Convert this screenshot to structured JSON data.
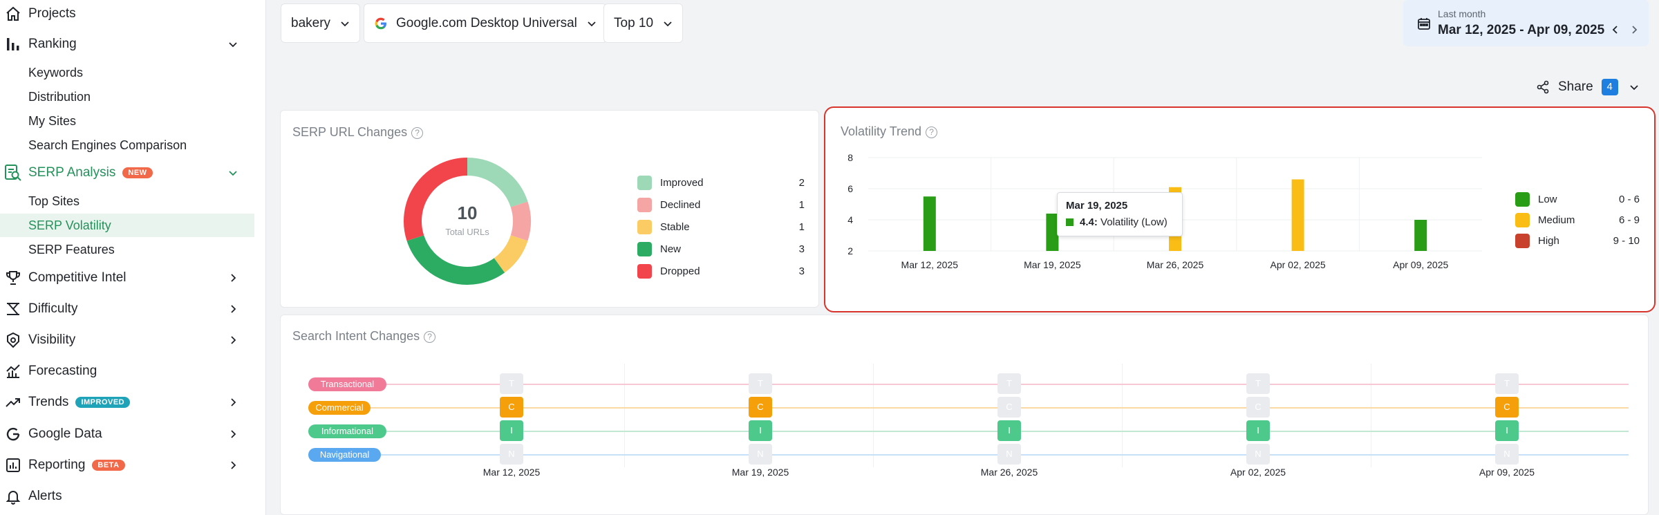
{
  "sidebar": {
    "projects": "Projects",
    "ranking": "Ranking",
    "ranking_sub": [
      "Keywords",
      "Distribution",
      "My Sites",
      "Search Engines Comparison"
    ],
    "serp_analysis": "SERP Analysis",
    "serp_badge": "NEW",
    "serp_sub": [
      "Top Sites",
      "SERP Volatility",
      "SERP Features"
    ],
    "competitive": "Competitive Intel",
    "difficulty": "Difficulty",
    "visibility": "Visibility",
    "forecasting": "Forecasting",
    "trends": "Trends",
    "trends_badge": "IMPROVED",
    "google_data": "Google Data",
    "reporting": "Reporting",
    "reporting_badge": "BETA",
    "alerts": "Alerts"
  },
  "topbar": {
    "keyword": "bakery",
    "engine": "Google.com Desktop Universal",
    "top": "Top 10",
    "date_label": "Last month",
    "date_range": "Mar 12, 2025 - Apr 09, 2025"
  },
  "share": {
    "label": "Share",
    "count": "4"
  },
  "url_changes": {
    "title": "SERP URL Changes",
    "total": "10",
    "total_label": "Total URLs",
    "legend": [
      {
        "label": "Improved",
        "value": "2",
        "color": "#9ed9b7"
      },
      {
        "label": "Declined",
        "value": "1",
        "color": "#f6a5a5"
      },
      {
        "label": "Stable",
        "value": "1",
        "color": "#fbcc63"
      },
      {
        "label": "New",
        "value": "3",
        "color": "#2cab63"
      },
      {
        "label": "Dropped",
        "value": "3",
        "color": "#f2454b"
      }
    ]
  },
  "volatility": {
    "title": "Volatility Trend",
    "tooltip": {
      "date": "Mar 19, 2025",
      "value": "4.4:",
      "text": "Volatility (Low)"
    },
    "legend": [
      {
        "label": "Low",
        "range": "0 - 6",
        "color": "#2a9d16"
      },
      {
        "label": "Medium",
        "range": "6 - 9",
        "color": "#f9bd16"
      },
      {
        "label": "High",
        "range": "9 - 10",
        "color": "#c8412d"
      }
    ]
  },
  "chart_data": {
    "type": "bar",
    "categories": [
      "Mar 12, 2025",
      "Mar 19, 2025",
      "Mar 26, 2025",
      "Apr 02, 2025",
      "Apr 09, 2025"
    ],
    "values": [
      5.5,
      4.4,
      6.1,
      6.6,
      4.0
    ],
    "colors": [
      "#2a9d16",
      "#2a9d16",
      "#f9bd16",
      "#f9bd16",
      "#2a9d16"
    ],
    "yticks": [
      "8",
      "6",
      "4",
      "2"
    ],
    "ylim": [
      2,
      8
    ]
  },
  "intent": {
    "title": "Search Intent Changes",
    "rows": [
      {
        "label": "Transactional",
        "letter": "T",
        "color": "#f07a98",
        "line": "#f7c7d3",
        "on": [
          false,
          false,
          false,
          false,
          false
        ]
      },
      {
        "label": "Commercial",
        "letter": "C",
        "color": "#f59f0b",
        "line": "#fbd9a4",
        "on": [
          true,
          true,
          false,
          false,
          true
        ]
      },
      {
        "label": "Informational",
        "letter": "I",
        "color": "#4ec98c",
        "line": "#bfe9d3",
        "on": [
          true,
          true,
          true,
          true,
          true
        ]
      },
      {
        "label": "Navigational",
        "letter": "N",
        "color": "#5aa9f0",
        "line": "#c5e0f8",
        "on": [
          false,
          false,
          false,
          false,
          false
        ]
      }
    ],
    "dates": [
      "Mar 12, 2025",
      "Mar 19, 2025",
      "Mar 26, 2025",
      "Apr 02, 2025",
      "Apr 09, 2025"
    ]
  }
}
